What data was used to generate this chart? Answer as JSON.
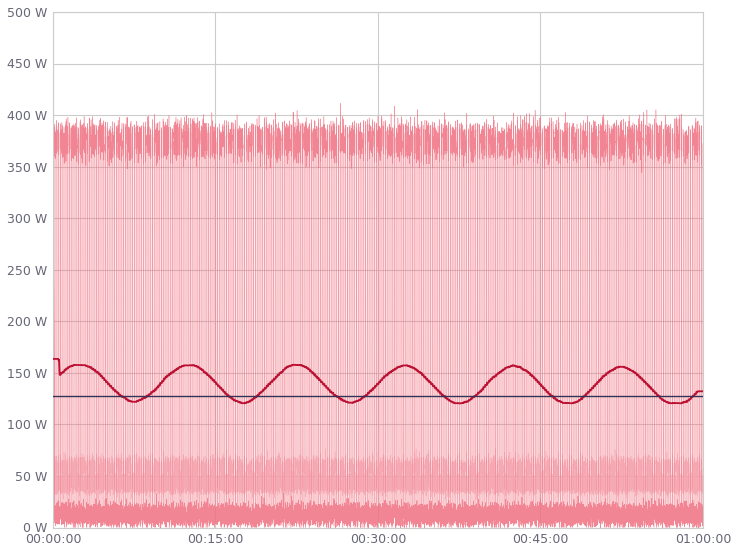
{
  "title": "",
  "xlabel": "",
  "ylabel": "",
  "ylim": [
    0,
    500
  ],
  "xlim": [
    0,
    3600
  ],
  "yticks": [
    0,
    50,
    100,
    150,
    200,
    250,
    300,
    350,
    400,
    450,
    500
  ],
  "xticks": [
    0,
    900,
    1800,
    2700,
    3600
  ],
  "xtick_labels": [
    "00:00:00",
    "00:15:00",
    "00:30:00",
    "00:45:00",
    "01:00:00"
  ],
  "mean_value": 128,
  "background_color": "#ffffff",
  "grid_color": "#cccccc",
  "raw_color": "#f07080",
  "moving_avg_color": "#bb1133",
  "mean_color": "#333355",
  "light_raw_color": "#f8c0c8"
}
